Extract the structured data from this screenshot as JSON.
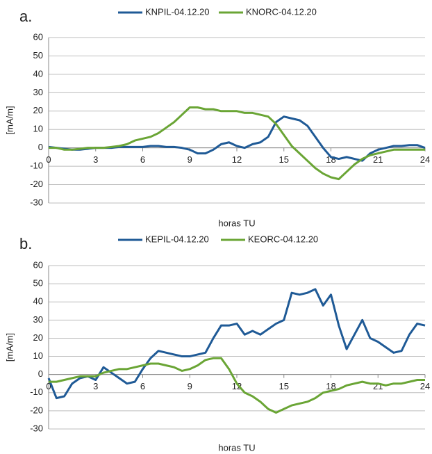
{
  "chart_data": [
    {
      "type": "line",
      "panel_label": "a.",
      "xlabel": "horas TU",
      "ylabel": "[mA/m]",
      "xlim": [
        0,
        24
      ],
      "xticks": [
        0,
        3,
        6,
        9,
        12,
        15,
        18,
        21,
        24
      ],
      "ylim": [
        -30,
        60
      ],
      "yticks": [
        -30,
        -20,
        -10,
        0,
        10,
        20,
        30,
        40,
        50,
        60
      ],
      "grid": true,
      "x": [
        0,
        0.5,
        1,
        1.5,
        2,
        2.5,
        3,
        3.5,
        4,
        4.5,
        5,
        5.5,
        6,
        6.5,
        7,
        7.5,
        8,
        8.5,
        9,
        9.5,
        10,
        10.5,
        11,
        11.5,
        12,
        12.5,
        13,
        13.5,
        14,
        14.5,
        15,
        15.5,
        16,
        16.5,
        17,
        17.5,
        18,
        18.5,
        19,
        19.5,
        20,
        20.5,
        21,
        21.5,
        22,
        22.5,
        23,
        23.5,
        24
      ],
      "series": [
        {
          "name": "KNPIL-04.12.20",
          "color": "#1f5a96",
          "values": [
            0.5,
            0,
            -0.5,
            -1,
            -1,
            -0.5,
            0,
            0,
            0,
            0.5,
            0.5,
            0.5,
            0.5,
            1,
            1,
            0.5,
            0.5,
            0,
            -1,
            -3,
            -3,
            -1,
            2,
            3,
            1,
            0,
            2,
            3,
            6,
            14,
            17,
            16,
            15,
            12,
            6,
            0,
            -5,
            -6,
            -5,
            -6,
            -7,
            -3,
            -1,
            0,
            1,
            1,
            1.5,
            1.5,
            0
          ]
        },
        {
          "name": "KNORC-04.12.20",
          "color": "#6aa535",
          "values": [
            0,
            0,
            -1,
            -1,
            -0.5,
            0,
            0,
            0,
            0.5,
            1,
            2,
            4,
            5,
            6,
            8,
            11,
            14,
            18,
            22,
            22,
            21,
            21,
            20,
            20,
            20,
            19,
            19,
            18,
            17,
            13,
            7,
            1,
            -3,
            -7,
            -11,
            -14,
            -16,
            -17,
            -13,
            -9,
            -6,
            -4,
            -3,
            -2,
            -1,
            -1,
            -1,
            -1,
            -1
          ]
        }
      ]
    },
    {
      "type": "line",
      "panel_label": "b.",
      "xlabel": "horas TU",
      "ylabel": "[mA/m]",
      "xlim": [
        0,
        24
      ],
      "xticks": [
        0,
        3,
        6,
        9,
        12,
        15,
        18,
        21,
        24
      ],
      "ylim": [
        -30,
        60
      ],
      "yticks": [
        -30,
        -20,
        -10,
        0,
        10,
        20,
        30,
        40,
        50,
        60
      ],
      "grid": true,
      "x": [
        0,
        0.5,
        1,
        1.5,
        2,
        2.5,
        3,
        3.5,
        4,
        4.5,
        5,
        5.5,
        6,
        6.5,
        7,
        7.5,
        8,
        8.5,
        9,
        9.5,
        10,
        10.5,
        11,
        11.5,
        12,
        12.5,
        13,
        13.5,
        14,
        14.5,
        15,
        15.5,
        16,
        16.5,
        17,
        17.5,
        18,
        18.5,
        19,
        19.5,
        20,
        20.5,
        21,
        21.5,
        22,
        22.5,
        23,
        23.5,
        24
      ],
      "series": [
        {
          "name": "KEPIL-04.12.20",
          "color": "#1f5a96",
          "values": [
            -2,
            -13,
            -12,
            -5,
            -2,
            -1,
            -3,
            4,
            1,
            -2,
            -5,
            -4,
            3,
            9,
            13,
            12,
            11,
            10,
            10,
            11,
            12,
            20,
            27,
            27,
            28,
            22,
            24,
            22,
            25,
            28,
            30,
            45,
            44,
            45,
            47,
            38,
            44,
            27,
            14,
            22,
            30,
            20,
            18,
            15,
            12,
            13,
            22,
            28,
            27
          ]
        },
        {
          "name": "KEORC-04.12.20",
          "color": "#6aa535",
          "values": [
            -4,
            -4,
            -3,
            -2,
            -1,
            -1,
            -1,
            1,
            2,
            3,
            3,
            4,
            5,
            6,
            6,
            5,
            4,
            2,
            3,
            5,
            8,
            9,
            9,
            3,
            -5,
            -10,
            -12,
            -15,
            -19,
            -21,
            -19,
            -17,
            -16,
            -15,
            -13,
            -10,
            -9,
            -8,
            -6,
            -5,
            -4,
            -5,
            -5,
            -6,
            -5,
            -5,
            -4,
            -3,
            -3
          ]
        }
      ]
    }
  ]
}
